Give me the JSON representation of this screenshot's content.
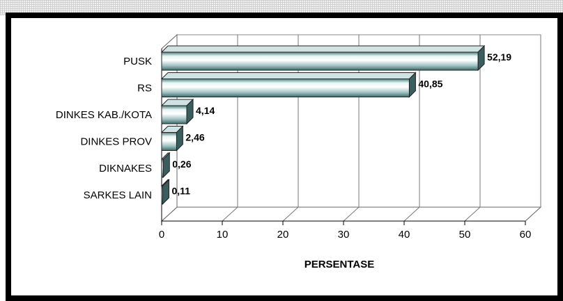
{
  "chart_data": {
    "type": "bar",
    "orientation": "horizontal",
    "style": "3d",
    "categories": [
      "PUSK",
      "RS",
      "DINKES KAB./KOTA",
      "DINKES PROV",
      "DIKNAKES",
      "SARKES LAIN"
    ],
    "values": [
      52.19,
      40.85,
      4.14,
      2.46,
      0.26,
      0.11
    ],
    "value_labels": [
      "52,19",
      "40,85",
      "4,14",
      "2,46",
      "0,26",
      "0,11"
    ],
    "xlabel": "PERSENTASE",
    "ylabel": "",
    "xlim": [
      0,
      60
    ],
    "xticks": [
      "0",
      "10",
      "20",
      "30",
      "40",
      "50",
      "60"
    ],
    "grid": true,
    "legend": "none",
    "colors": {
      "bar_light": "#ffffff",
      "bar_dark": "#5f8e8e",
      "bar_side": "#3a5e5e",
      "bar_top": "#cfe3e3",
      "frame": "#000000"
    }
  }
}
